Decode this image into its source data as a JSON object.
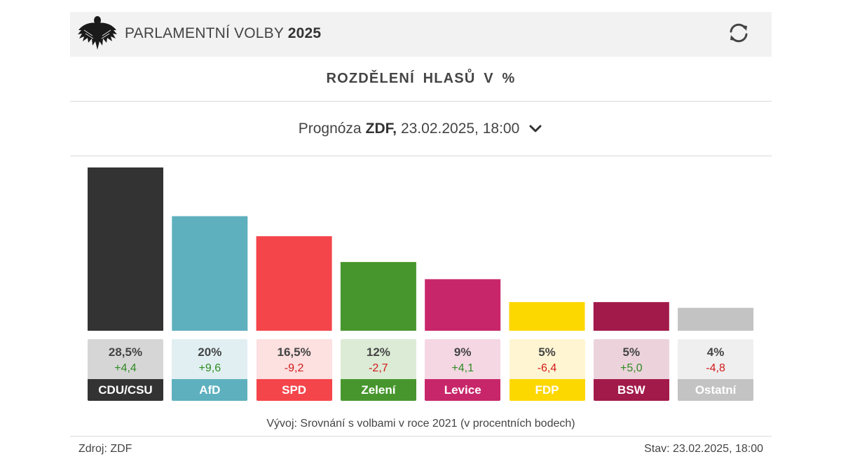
{
  "header": {
    "title_prefix": "PARLAMENTNÍ VOLBY",
    "title_year": "2025",
    "logo_icon": "federal-eagle-icon",
    "refresh_icon": "refresh-icon"
  },
  "section_title": "ROZDĚLENÍ HLASŮ V %",
  "selector": {
    "prefix": "Prognóza",
    "source": "ZDF,",
    "datetime": "23.02.2025, 18:00",
    "icon": "chevron-down-icon"
  },
  "chart_data": {
    "type": "bar",
    "title": "ROZDĚLENÍ HLASŮ V %",
    "categories": [
      "CDU/CSU",
      "AfD",
      "SPD",
      "Zelení",
      "Levice",
      "FDP",
      "BSW",
      "Ostatní"
    ],
    "values": [
      28.5,
      20,
      16.5,
      12,
      9,
      5,
      5,
      4
    ],
    "value_labels": [
      "28,5%",
      "20%",
      "16,5%",
      "12%",
      "9%",
      "5%",
      "5%",
      "4%"
    ],
    "changes": [
      "+4,4",
      "+9,6",
      "-9,2",
      "-2,7",
      "+4,1",
      "-6,4",
      "+5,0",
      "-4,8"
    ],
    "colors": [
      "#333333",
      "#5eb0be",
      "#f4454b",
      "#47962d",
      "#c8266a",
      "#fdd700",
      "#a21a4a",
      "#c3c3c3"
    ],
    "card_backgrounds": [
      "#d6d6d6",
      "#e1eff2",
      "#fde0e0",
      "#dcebd5",
      "#f5d7e3",
      "#fff5d2",
      "#ecd3db",
      "#efefef"
    ],
    "change_colors": {
      "positive": "#2e8b22",
      "negative": "#d11a1a"
    },
    "grid": false,
    "legend": "none"
  },
  "footnote": "Vývoj: Srovnání s volbami v roce 2021 (v procentních bodech)",
  "footer": {
    "source": "Zdroj: ZDF",
    "status": "Stav: 23.02.2025, 18:00"
  }
}
